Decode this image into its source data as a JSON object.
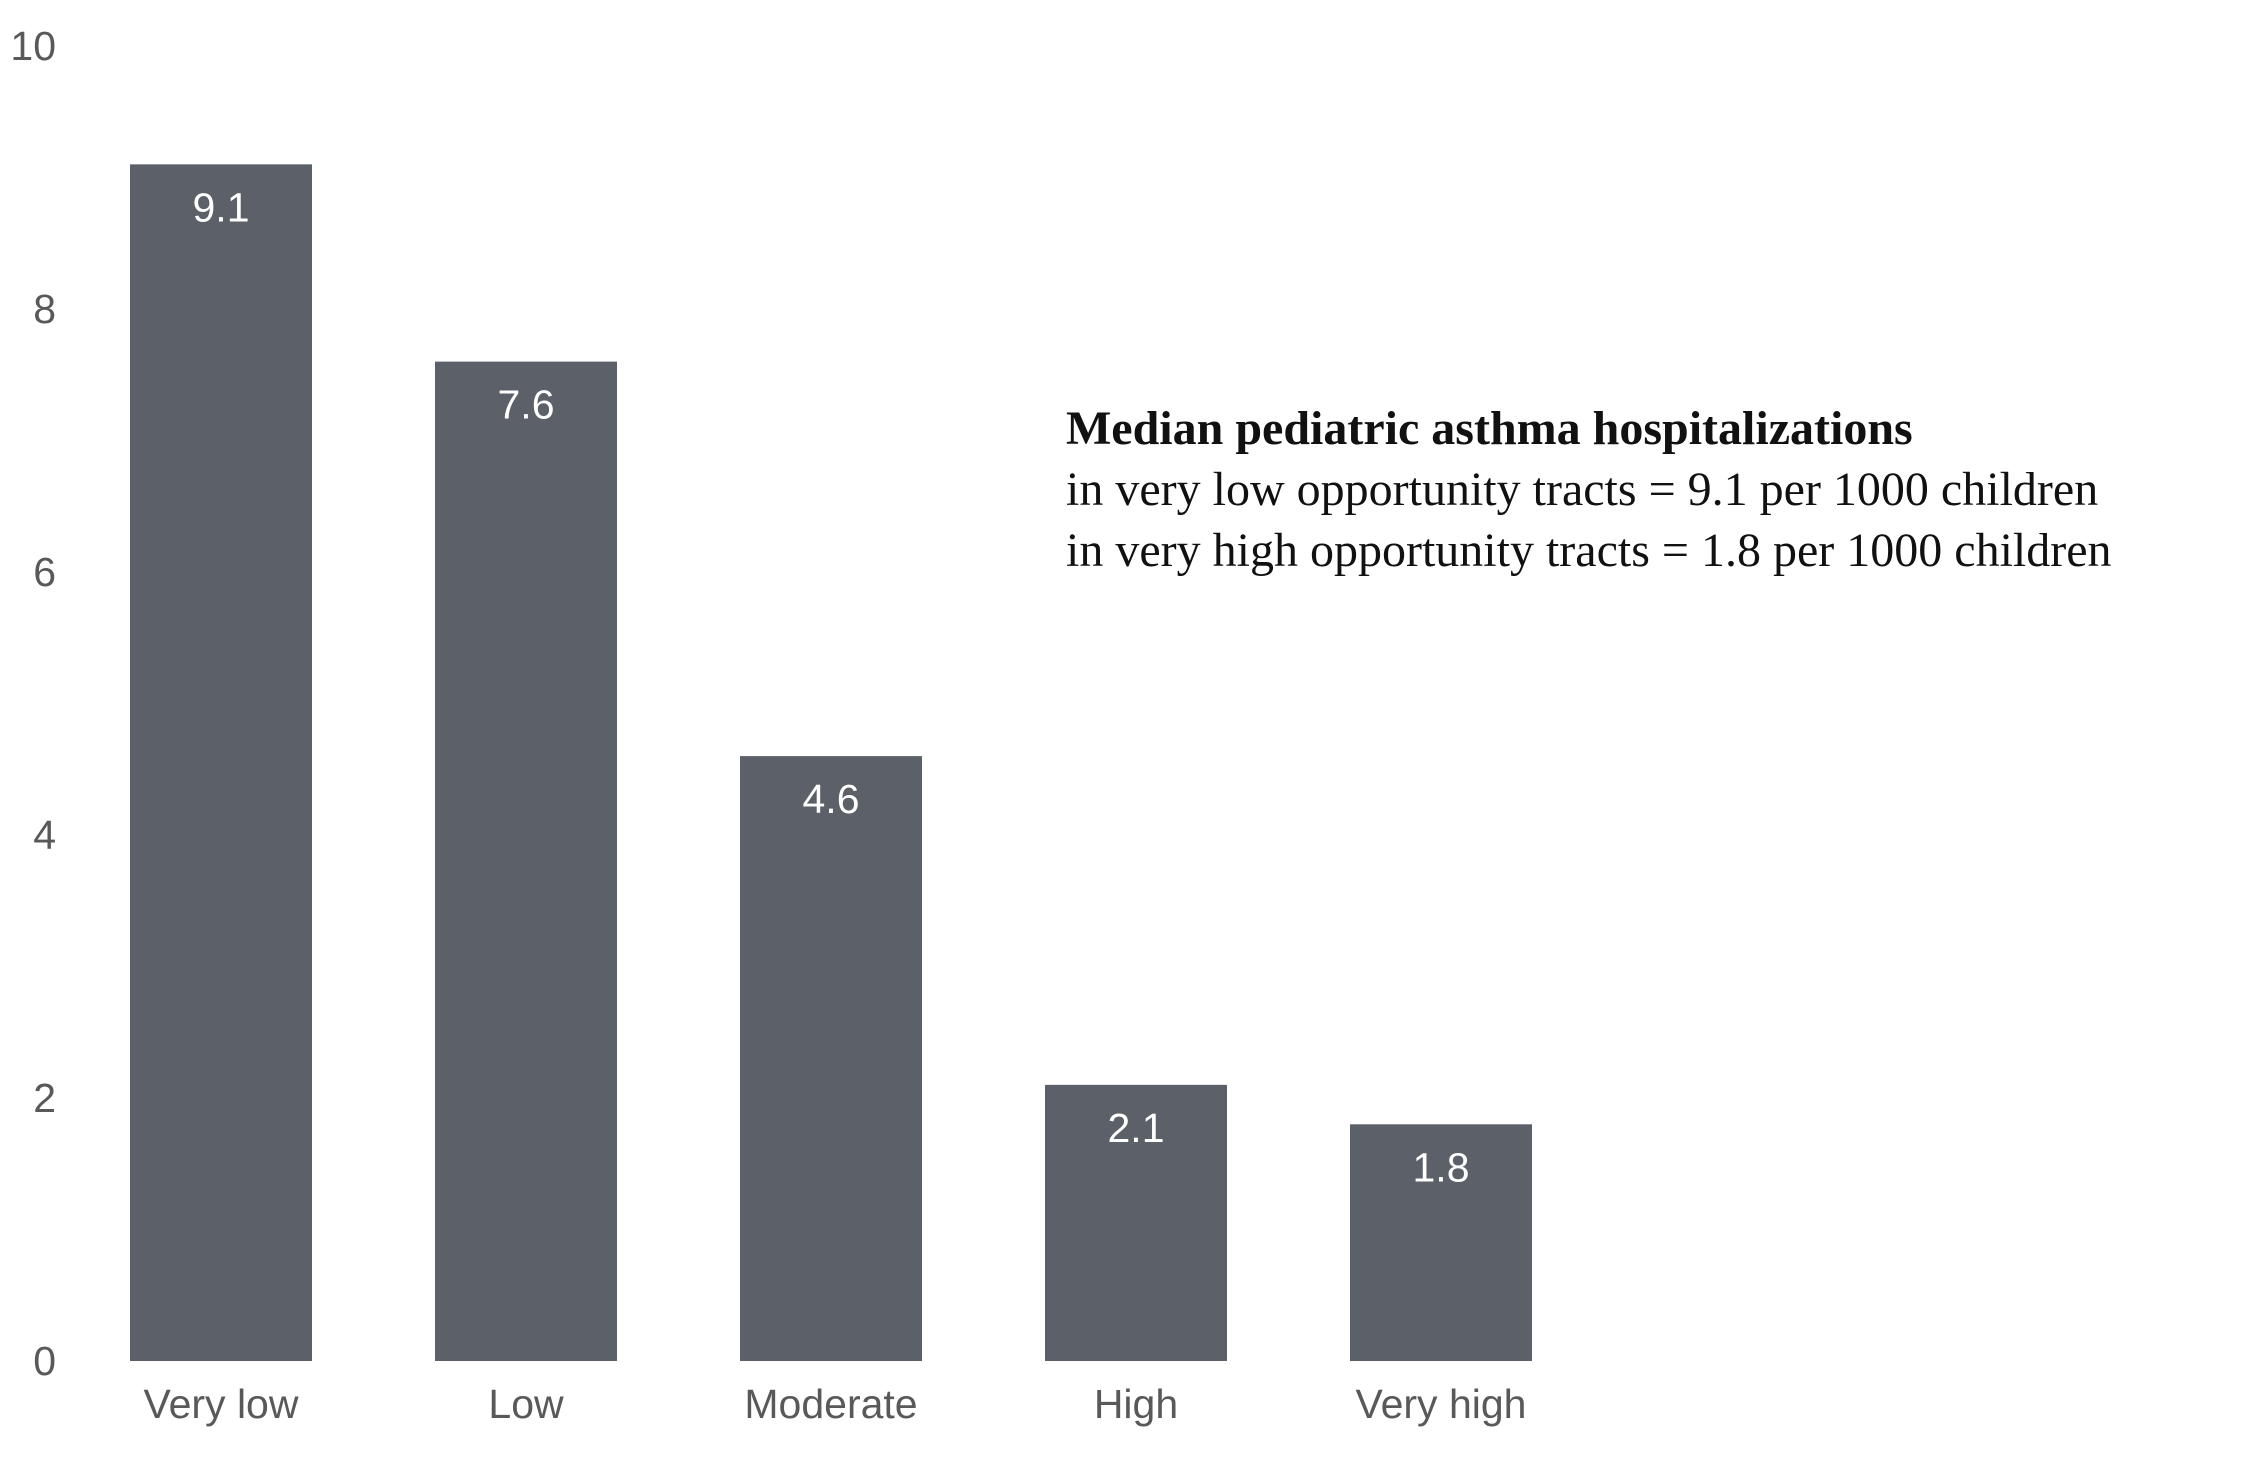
{
  "chart_data": {
    "type": "bar",
    "categories": [
      "Very low",
      "Low",
      "Moderate",
      "High",
      "Very high"
    ],
    "values": [
      9.1,
      7.6,
      4.6,
      2.1,
      1.8
    ],
    "data_labels": [
      "9.1",
      "7.6",
      "4.6",
      "2.1",
      "1.8"
    ],
    "ylim": [
      0,
      10
    ],
    "yticks": [
      0,
      2,
      4,
      6,
      8,
      10
    ],
    "ytick_labels": [
      "0",
      "2",
      "4",
      "6",
      "8",
      "10"
    ],
    "grid": false,
    "bar_color": "#5c6068",
    "annotation": {
      "title": "Median pediatric asthma hospitalizations",
      "lines": [
        "in very low opportunity tracts = 9.1 per 1000 children",
        "in very high opportunity tracts = 1.8 per 1000 children"
      ]
    }
  }
}
